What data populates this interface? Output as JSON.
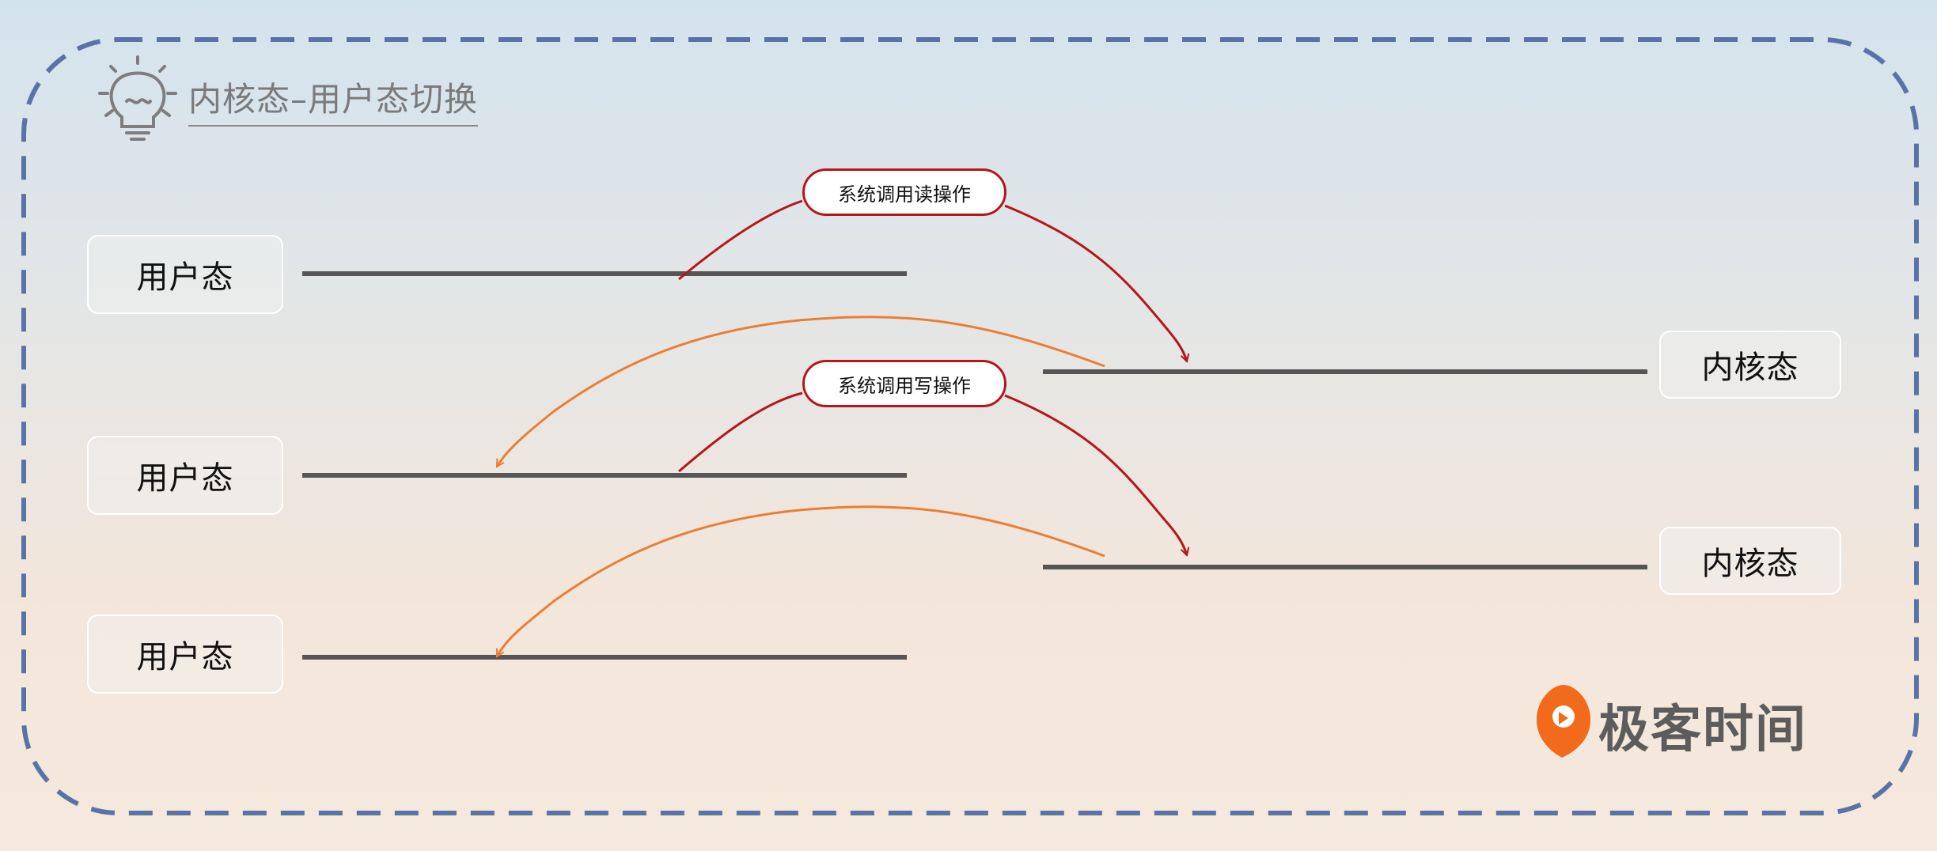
{
  "title": "内核态–用户态切换",
  "states": {
    "user_1": "用户态",
    "user_2": "用户态",
    "user_3": "用户态",
    "kernel_1": "内核态",
    "kernel_2": "内核态"
  },
  "calls": {
    "read": "系统调用读操作",
    "write": "系统调用写操作"
  },
  "brand": "极客时间",
  "colors": {
    "frame": "#5a73a6",
    "timeline": "#555555",
    "syscall_arrow": "#b7151b",
    "return_arrow": "#ec7e33",
    "brand_orange": "#f26a1b"
  },
  "icons": {
    "title_icon": "lightbulb-icon",
    "brand_icon": "geektime-logo-icon"
  }
}
